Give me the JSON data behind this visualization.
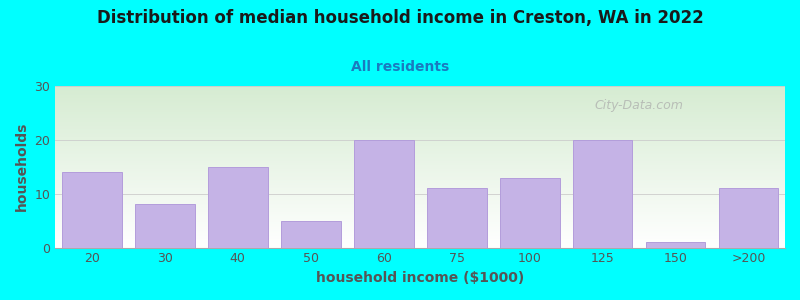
{
  "title": "Distribution of median household income in Creston, WA in 2022",
  "subtitle": "All residents",
  "xlabel": "household income ($1000)",
  "ylabel": "households",
  "categories": [
    "20",
    "30",
    "40",
    "50",
    "60",
    "75",
    "100",
    "125",
    "150",
    ">200"
  ],
  "values": [
    14,
    8,
    15,
    5,
    20,
    11,
    13,
    20,
    1,
    11
  ],
  "bar_color": "#c5b3e6",
  "bar_edge_color": "#b39ddb",
  "background_color": "#00FFFF",
  "ylim": [
    0,
    30
  ],
  "yticks": [
    0,
    10,
    20,
    30
  ],
  "title_fontsize": 12,
  "subtitle_fontsize": 10,
  "label_fontsize": 10,
  "tick_fontsize": 9,
  "watermark_text": "City-Data.com",
  "title_color": "#1a1a1a",
  "subtitle_color": "#1a7abf",
  "axis_label_color": "#555555",
  "plot_bg_color_top": "#d6ecd2",
  "plot_bg_color_bottom": "#ffffff",
  "grid_color": "#cccccc"
}
